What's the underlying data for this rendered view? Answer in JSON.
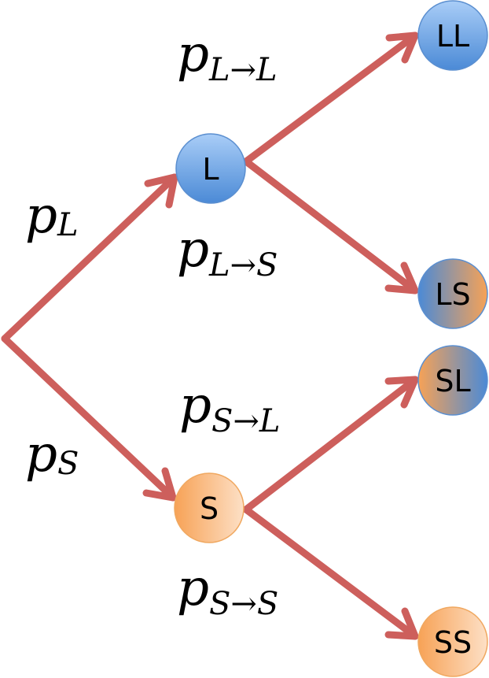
{
  "colors": {
    "edge": "#cd5f5c",
    "blue_light": "#a9cdf7",
    "blue_dark": "#4b8ad6",
    "orange_light": "#fde0c6",
    "orange_dark": "#f7a256",
    "node_blue_stroke": "#5b8fd0",
    "node_orange_stroke": "#f0a860"
  },
  "nodes": {
    "L": {
      "label": "L"
    },
    "S": {
      "label": "S"
    },
    "LL": {
      "label": "LL"
    },
    "LS": {
      "label": "LS"
    },
    "SL": {
      "label": "SL"
    },
    "SS": {
      "label": "SS"
    }
  },
  "edge_labels": {
    "pL": {
      "base": "p",
      "sub": "L",
      "sub2": ""
    },
    "pS": {
      "base": "p",
      "sub": "S",
      "sub2": ""
    },
    "pLtoL": {
      "base": "p",
      "sub": "L",
      "arrow": "→",
      "sub2": "L"
    },
    "pLtoS": {
      "base": "p",
      "sub": "L",
      "arrow": "→",
      "sub2": "S"
    },
    "pStoL": {
      "base": "p",
      "sub": "S",
      "arrow": "→",
      "sub2": "L"
    },
    "pStoS": {
      "base": "p",
      "sub": "S",
      "arrow": "→",
      "sub2": "S"
    }
  }
}
